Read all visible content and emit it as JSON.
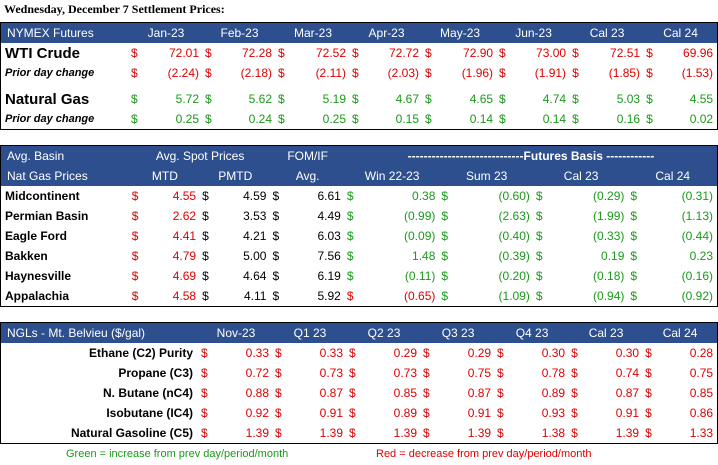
{
  "title": "Wednesday, December 7 Settlement Prices:",
  "colors": {
    "header_bg": "#2e4f8e",
    "positive": "#1a9a1a",
    "negative": "#e00000"
  },
  "nymex": {
    "header": "NYMEX Futures",
    "columns": [
      "Jan-23",
      "Feb-23",
      "Mar-23",
      "Apr-23",
      "May-23",
      "Jun-23",
      "Cal 23",
      "Cal 24"
    ],
    "wti": {
      "label": "WTI Crude",
      "values": [
        "72.01",
        "72.28",
        "72.52",
        "72.72",
        "72.90",
        "73.00",
        "72.51",
        "69.96"
      ],
      "change_label": "Prior day change",
      "changes": [
        "(2.24)",
        "(2.18)",
        "(2.11)",
        "(2.03)",
        "(1.96)",
        "(1.91)",
        "(1.85)",
        "(1.53)"
      ]
    },
    "gas": {
      "label": "Natural Gas",
      "values": [
        "5.72",
        "5.62",
        "5.19",
        "4.67",
        "4.65",
        "4.74",
        "5.03",
        "4.55"
      ],
      "change_label": "Prior day change",
      "changes": [
        "0.25",
        "0.24",
        "0.25",
        "0.15",
        "0.14",
        "0.14",
        "0.16",
        "0.02"
      ]
    }
  },
  "basin": {
    "h1": {
      "basin": "Avg. Basin",
      "spot": "Avg. Spot Prices",
      "fom": "FOM/IF",
      "futures": "-----------------------------Futures Basis ------------"
    },
    "h2": {
      "basin": "Nat Gas Prices",
      "mtd": "MTD",
      "pmtd": "PMTD",
      "avg": "Avg.",
      "cols": [
        "Win 22-23",
        "Sum 23",
        "Cal 23",
        "Cal 24"
      ]
    },
    "rows": [
      {
        "name": "Midcontinent",
        "mtd": "4.55",
        "pmtd": "4.59",
        "fom": "6.61",
        "basis": [
          "0.38",
          "(0.60)",
          "(0.29)",
          "(0.31)"
        ]
      },
      {
        "name": "Permian Basin",
        "mtd": "2.62",
        "pmtd": "3.53",
        "fom": "4.49",
        "basis": [
          "(0.99)",
          "(2.63)",
          "(1.99)",
          "(1.13)"
        ]
      },
      {
        "name": "Eagle Ford",
        "mtd": "4.41",
        "pmtd": "4.21",
        "fom": "6.03",
        "basis": [
          "(0.09)",
          "(0.40)",
          "(0.33)",
          "(0.44)"
        ]
      },
      {
        "name": "Bakken",
        "mtd": "4.79",
        "pmtd": "5.00",
        "fom": "7.56",
        "basis": [
          "1.48",
          "(0.39)",
          "0.19",
          "0.23"
        ]
      },
      {
        "name": "Haynesville",
        "mtd": "4.69",
        "pmtd": "4.64",
        "fom": "6.19",
        "basis": [
          "(0.11)",
          "(0.20)",
          "(0.18)",
          "(0.16)"
        ]
      },
      {
        "name": "Appalachia",
        "mtd": "4.58",
        "pmtd": "4.11",
        "fom": "5.92",
        "basis": [
          "(0.65)",
          "(1.09)",
          "(0.94)",
          "(0.92)"
        ]
      }
    ]
  },
  "ngl": {
    "header": "NGLs - Mt. Belvieu ($/gal)",
    "columns": [
      "Nov-23",
      "Q1 23",
      "Q2 23",
      "Q3 23",
      "Q4 23",
      "Cal 23",
      "Cal 24"
    ],
    "rows": [
      {
        "name": "Ethane (C2) Purity",
        "values": [
          "0.33",
          "0.33",
          "0.29",
          "0.29",
          "0.30",
          "0.30",
          "0.28"
        ]
      },
      {
        "name": "Propane (C3)",
        "values": [
          "0.72",
          "0.73",
          "0.73",
          "0.75",
          "0.78",
          "0.74",
          "0.75"
        ]
      },
      {
        "name": "N. Butane (nC4)",
        "values": [
          "0.88",
          "0.87",
          "0.85",
          "0.87",
          "0.89",
          "0.87",
          "0.85"
        ]
      },
      {
        "name": "Isobutane (IC4)",
        "values": [
          "0.92",
          "0.91",
          "0.89",
          "0.91",
          "0.93",
          "0.91",
          "0.86"
        ]
      },
      {
        "name": "Natural Gasoline (C5)",
        "values": [
          "1.39",
          "1.39",
          "1.39",
          "1.39",
          "1.38",
          "1.39",
          "1.33"
        ]
      }
    ]
  },
  "legend": {
    "green": "Green = increase from prev day/period/month",
    "red": "Red = decrease from prev day/period/month"
  },
  "dollar": "$"
}
